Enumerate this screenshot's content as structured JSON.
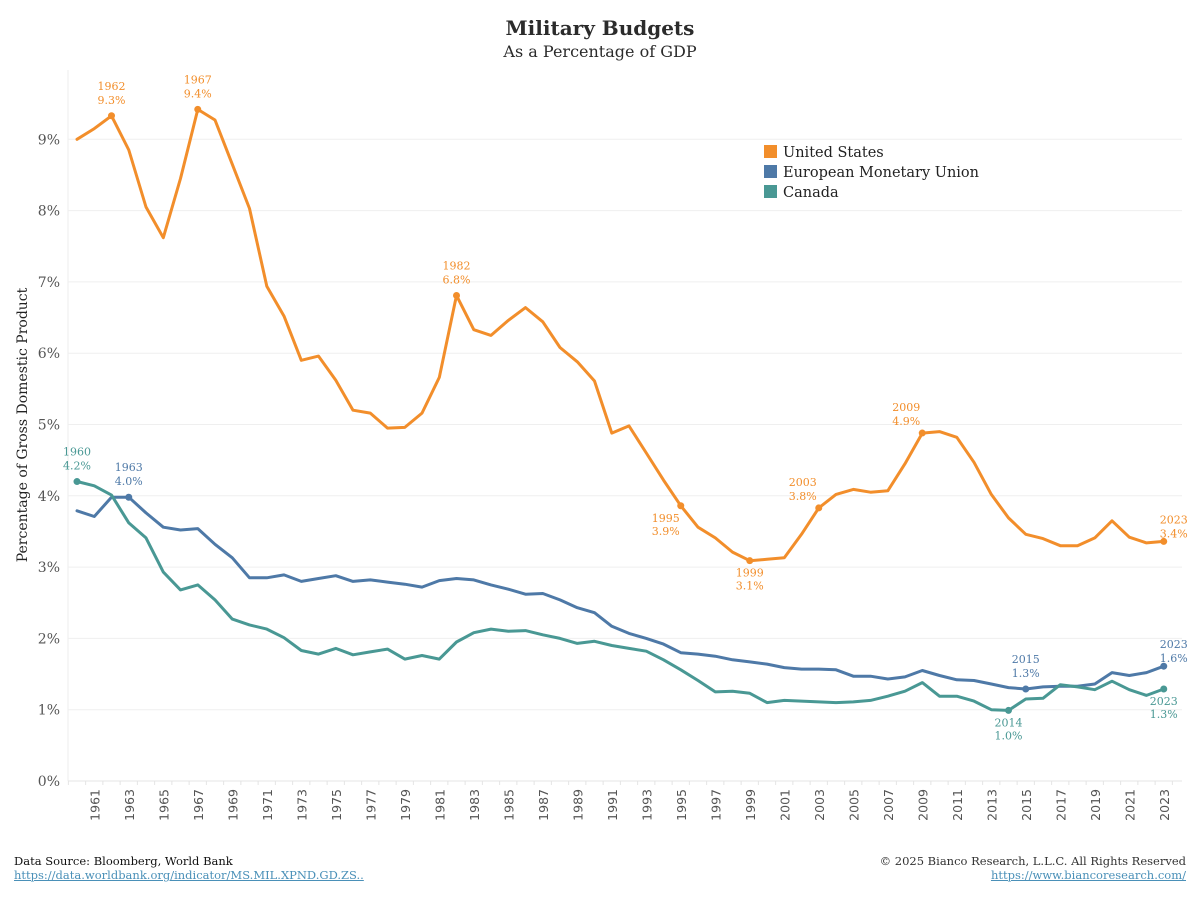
{
  "header": {
    "title": "Military Budgets",
    "subtitle": "As a Percentage of GDP"
  },
  "footer": {
    "source_label": "Data Source: Bloomberg, World Bank",
    "source_link": "https://data.worldbank.org/indicator/MS.MIL.XPND.GD.ZS..",
    "copyright": "© 2025 Bianco Research, L.L.C. All Rights Reserved",
    "site_link": "https://www.biancoresearch.com/"
  },
  "chart_data": {
    "type": "line",
    "title": "Military Budgets",
    "subtitle": "As a Percentage of GDP",
    "xlabel": "",
    "ylabel": "Percentage of Gross Domestic Product",
    "ylim": [
      0,
      10
    ],
    "yticks": [
      0,
      1,
      2,
      3,
      4,
      5,
      6,
      7,
      8,
      9
    ],
    "ytick_labels": [
      "0%",
      "1%",
      "2%",
      "3%",
      "4%",
      "5%",
      "6%",
      "7%",
      "8%",
      "9%"
    ],
    "xtick_labels": [
      "1961",
      "1963",
      "1965",
      "1967",
      "1969",
      "1971",
      "1973",
      "1975",
      "1977",
      "1979",
      "1981",
      "1983",
      "1985",
      "1987",
      "1989",
      "1991",
      "1993",
      "1995",
      "1997",
      "1999",
      "2001",
      "2003",
      "2005",
      "2007",
      "2009",
      "2011",
      "2013",
      "2015",
      "2017",
      "2019",
      "2021",
      "2023"
    ],
    "grid": true,
    "legend_position": "top-right",
    "x": [
      1960,
      1961,
      1962,
      1963,
      1964,
      1965,
      1966,
      1967,
      1968,
      1969,
      1970,
      1971,
      1972,
      1973,
      1974,
      1975,
      1976,
      1977,
      1978,
      1979,
      1980,
      1981,
      1982,
      1983,
      1984,
      1985,
      1986,
      1987,
      1988,
      1989,
      1990,
      1991,
      1992,
      1993,
      1994,
      1995,
      1996,
      1997,
      1998,
      1999,
      2000,
      2001,
      2002,
      2003,
      2004,
      2005,
      2006,
      2007,
      2008,
      2009,
      2010,
      2011,
      2012,
      2013,
      2014,
      2015,
      2016,
      2017,
      2018,
      2019,
      2020,
      2021,
      2022,
      2023
    ],
    "series": [
      {
        "name": "United States",
        "color": "#f28e2b",
        "values": [
          9.0,
          9.15,
          9.33,
          8.85,
          8.05,
          7.62,
          8.45,
          9.42,
          9.27,
          8.65,
          8.03,
          6.94,
          6.52,
          5.9,
          5.96,
          5.62,
          5.2,
          5.16,
          4.95,
          4.96,
          5.16,
          5.66,
          6.81,
          6.33,
          6.25,
          6.46,
          6.64,
          6.44,
          6.08,
          5.88,
          5.61,
          4.88,
          4.98,
          4.6,
          4.22,
          3.86,
          3.56,
          3.41,
          3.21,
          3.09,
          3.11,
          3.13,
          3.46,
          3.83,
          4.02,
          4.09,
          4.05,
          4.07,
          4.45,
          4.88,
          4.9,
          4.82,
          4.47,
          4.02,
          3.69,
          3.46,
          3.4,
          3.3,
          3.3,
          3.41,
          3.65,
          3.42,
          3.34,
          3.36
        ],
        "annotations": [
          {
            "year": 1962,
            "year_label": "1962",
            "value_label": "9.3%",
            "position": "above"
          },
          {
            "year": 1967,
            "year_label": "1967",
            "value_label": "9.4%",
            "position": "above"
          },
          {
            "year": 1982,
            "year_label": "1982",
            "value_label": "6.8%",
            "position": "above"
          },
          {
            "year": 1995,
            "year_label": "1995",
            "value_label": "3.9%",
            "position": "below-left"
          },
          {
            "year": 1999,
            "year_label": "1999",
            "value_label": "3.1%",
            "position": "below"
          },
          {
            "year": 2003,
            "year_label": "2003",
            "value_label": "3.8%",
            "position": "above-left"
          },
          {
            "year": 2009,
            "year_label": "2009",
            "value_label": "4.9%",
            "position": "above-left"
          },
          {
            "year": 2023,
            "year_label": "2023",
            "value_label": "3.4%",
            "position": "above-right"
          }
        ]
      },
      {
        "name": "European Monetary Union",
        "color": "#4e79a7",
        "values": [
          3.79,
          3.71,
          3.98,
          3.98,
          3.76,
          3.56,
          3.52,
          3.54,
          3.32,
          3.13,
          2.85,
          2.85,
          2.89,
          2.8,
          2.84,
          2.88,
          2.8,
          2.82,
          2.79,
          2.76,
          2.72,
          2.81,
          2.84,
          2.82,
          2.75,
          2.69,
          2.62,
          2.63,
          2.54,
          2.43,
          2.36,
          2.17,
          2.07,
          2.0,
          1.92,
          1.8,
          1.78,
          1.75,
          1.7,
          1.67,
          1.64,
          1.59,
          1.57,
          1.57,
          1.56,
          1.47,
          1.47,
          1.43,
          1.46,
          1.55,
          1.48,
          1.42,
          1.41,
          1.36,
          1.31,
          1.29,
          1.32,
          1.33,
          1.33,
          1.36,
          1.52,
          1.48,
          1.52,
          1.61
        ],
        "annotations": [
          {
            "year": 1963,
            "year_label": "1963",
            "value_label": "4.0%",
            "position": "above"
          },
          {
            "year": 2015,
            "year_label": "2015",
            "value_label": "1.3%",
            "position": "above"
          },
          {
            "year": 2023,
            "year_label": "2023",
            "value_label": "1.6%",
            "position": "above-right"
          }
        ]
      },
      {
        "name": "Canada",
        "color": "#499894",
        "values": [
          4.2,
          4.14,
          4.01,
          3.62,
          3.41,
          2.93,
          2.68,
          2.75,
          2.54,
          2.27,
          2.19,
          2.13,
          2.01,
          1.83,
          1.78,
          1.86,
          1.77,
          1.81,
          1.85,
          1.71,
          1.76,
          1.71,
          1.95,
          2.08,
          2.13,
          2.1,
          2.11,
          2.05,
          2.0,
          1.93,
          1.96,
          1.9,
          1.86,
          1.82,
          1.7,
          1.56,
          1.41,
          1.25,
          1.26,
          1.23,
          1.1,
          1.13,
          1.12,
          1.11,
          1.1,
          1.11,
          1.13,
          1.19,
          1.26,
          1.38,
          1.19,
          1.19,
          1.12,
          1.0,
          0.99,
          1.15,
          1.16,
          1.35,
          1.32,
          1.28,
          1.4,
          1.28,
          1.2,
          1.29
        ],
        "annotations": [
          {
            "year": 1960,
            "year_label": "1960",
            "value_label": "4.2%",
            "position": "above"
          },
          {
            "year": 2014,
            "year_label": "2014",
            "value_label": "1.0%",
            "position": "below"
          },
          {
            "year": 2023,
            "year_label": "2023",
            "value_label": "1.3%",
            "position": "below"
          }
        ]
      }
    ]
  }
}
